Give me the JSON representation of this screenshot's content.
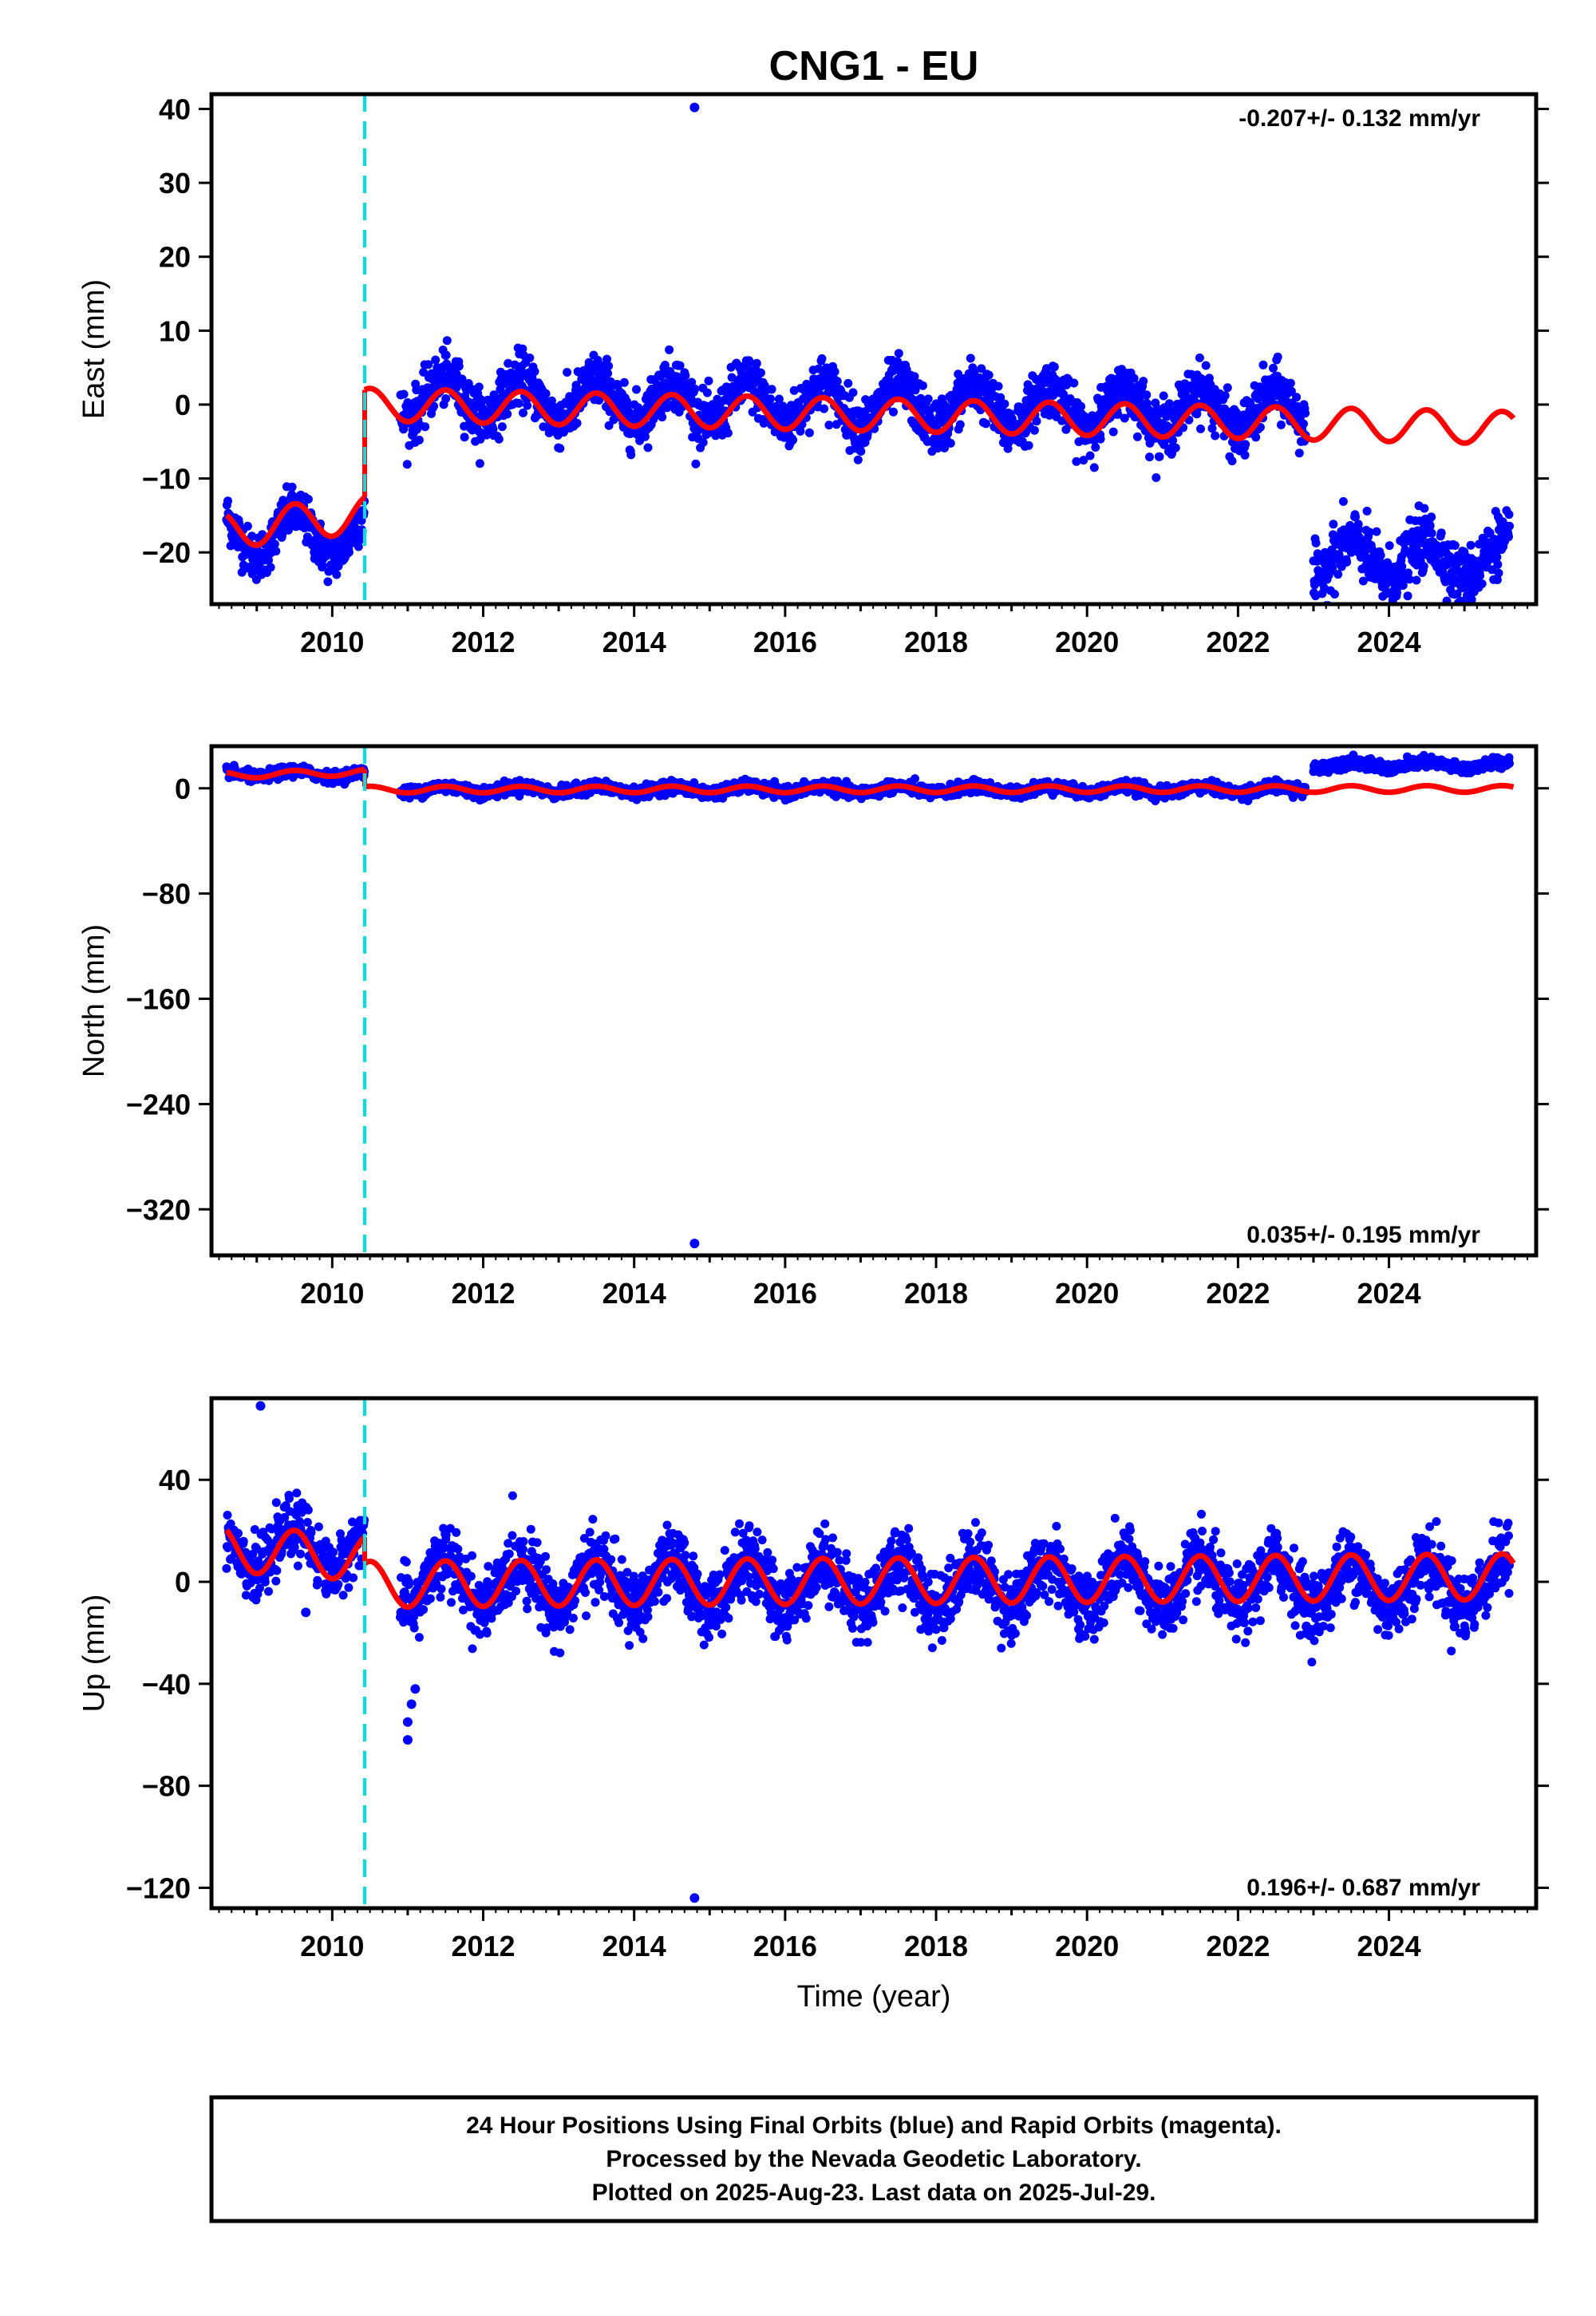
{
  "chart_data": {
    "title": "CNG1 - EU",
    "xlabel": "Time (year)",
    "xlim": [
      2008.4,
      2025.95
    ],
    "x_ticks": [
      2010,
      2012,
      2014,
      2016,
      2018,
      2020,
      2022,
      2024
    ],
    "x_tick_labels": [
      "2010",
      "2012",
      "2014",
      "2016",
      "2018",
      "2020",
      "2022",
      "2024"
    ],
    "equipment_change_line": {
      "x": 2010.43,
      "color": "#00e0e0",
      "style": "dashed"
    },
    "colors": {
      "observations": "#0000ff",
      "model": "#ff0000",
      "frame": "#000000"
    },
    "panels": [
      {
        "id": "east",
        "type": "scatter",
        "ylabel": "East (mm)",
        "ylim": [
          -27,
          42
        ],
        "y_ticks": [
          40,
          30,
          20,
          10,
          0,
          -10,
          -20
        ],
        "y_tick_labels": [
          "40",
          "30",
          "20",
          "10",
          "0",
          "−10",
          "−20"
        ],
        "rate_label": "-0.207+/- 0.132 mm/yr",
        "rate_position": "top-right",
        "outliers": [
          {
            "x": 2014.8,
            "y": 40.2
          }
        ],
        "observation_segments": [
          {
            "x_start": 2008.6,
            "x_end": 2010.43,
            "offset": -17.5,
            "amplitude": 3.0,
            "noise": 1.6
          },
          {
            "x_start": 2010.9,
            "x_end": 2022.9,
            "offset": 1.0,
            "amplitude": 2.8,
            "noise": 1.8,
            "trend": -0.17
          },
          {
            "x_start": 2023.0,
            "x_end": 2025.6,
            "offset": -21.0,
            "amplitude": 2.6,
            "noise": 2.0
          }
        ],
        "model_segments": [
          {
            "x_start": 2008.6,
            "x_end": 2010.43,
            "offset": -17.0,
            "amplitude": 2.5,
            "trend": 1.2
          },
          {
            "x_start": 2010.43,
            "x_end": 2025.65,
            "offset": 0.0,
            "amplitude": 2.2,
            "trend": -0.207
          }
        ]
      },
      {
        "id": "north",
        "type": "scatter",
        "ylabel": "North (mm)",
        "ylim": [
          -355,
          32
        ],
        "y_ticks": [
          0,
          -80,
          -160,
          -240,
          -320
        ],
        "y_tick_labels": [
          "0",
          "−80",
          "−160",
          "−240",
          "−320"
        ],
        "rate_label": "0.035+/- 0.195 mm/yr",
        "rate_position": "bottom-right",
        "outliers": [
          {
            "x": 2014.8,
            "y": -346
          }
        ],
        "observation_segments": [
          {
            "x_start": 2008.6,
            "x_end": 2010.43,
            "offset": 11.0,
            "amplitude": 2.5,
            "noise": 2.0
          },
          {
            "x_start": 2010.9,
            "x_end": 2022.9,
            "offset": -1.0,
            "amplitude": 2.5,
            "noise": 2.2
          },
          {
            "x_start": 2023.0,
            "x_end": 2025.6,
            "offset": 17.5,
            "amplitude": 2.5,
            "noise": 2.0
          }
        ],
        "model_segments": [
          {
            "x_start": 2008.6,
            "x_end": 2010.43,
            "offset": 10.0,
            "amplitude": 2.5,
            "trend": 1.2
          },
          {
            "x_start": 2010.43,
            "x_end": 2025.65,
            "offset": -1.0,
            "amplitude": 2.5,
            "trend": 0.035
          }
        ]
      },
      {
        "id": "up",
        "type": "scatter",
        "ylabel": "Up (mm)",
        "ylim": [
          -128,
          72
        ],
        "y_ticks": [
          40,
          0,
          -40,
          -80,
          -120
        ],
        "y_tick_labels": [
          "40",
          "0",
          "−40",
          "−80",
          "−120"
        ],
        "rate_label": "0.196+/- 0.687 mm/yr",
        "rate_position": "bottom-right",
        "outliers": [
          {
            "x": 2009.05,
            "y": 69
          },
          {
            "x": 2014.8,
            "y": -124
          },
          {
            "x": 2011.0,
            "y": -62
          },
          {
            "x": 2011.0,
            "y": -55
          },
          {
            "x": 2011.05,
            "y": -48
          },
          {
            "x": 2011.1,
            "y": -42
          },
          {
            "x": 2009.65,
            "y": -12
          }
        ],
        "observation_segments": [
          {
            "x_start": 2008.6,
            "x_end": 2010.43,
            "offset": 13.0,
            "amplitude": 9.0,
            "noise": 5.5
          },
          {
            "x_start": 2010.9,
            "x_end": 2025.6,
            "offset": -1.0,
            "amplitude": 9.0,
            "noise": 6.5
          }
        ],
        "model_segments": [
          {
            "x_start": 2008.6,
            "x_end": 2010.43,
            "offset": 13.0,
            "amplitude": 9.0,
            "trend": -2.0
          },
          {
            "x_start": 2010.43,
            "x_end": 2025.65,
            "offset": -1.0,
            "amplitude": 9.0,
            "trend": 0.196
          }
        ]
      }
    ]
  },
  "footer": {
    "line1": "24 Hour Positions Using Final Orbits (blue) and Rapid Orbits (magenta).",
    "line2": "Processed by the Nevada Geodetic Laboratory.",
    "line3": "Plotted on 2025-Aug-23. Last data on 2025-Jul-29."
  }
}
